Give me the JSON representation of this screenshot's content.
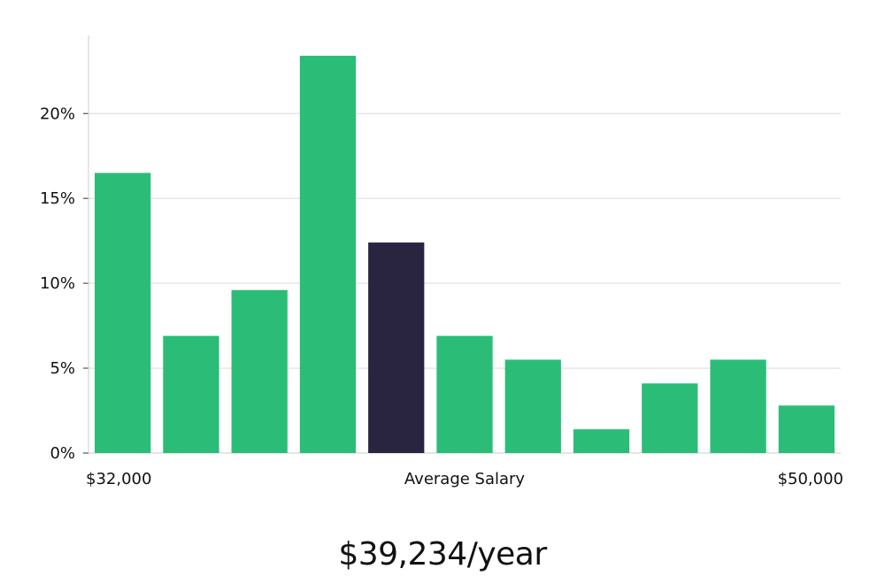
{
  "chart_data": {
    "type": "bar",
    "title": "",
    "xlabel": "Average Salary",
    "ylabel": "",
    "x_range_labels": {
      "min": "$32,000",
      "max": "$50,000"
    },
    "bin_count": 11,
    "ylim": [
      0,
      24.6
    ],
    "y_ticks": [
      0,
      5,
      10,
      15,
      20
    ],
    "y_tick_labels": [
      "0%",
      "5%",
      "10%",
      "15%",
      "20%"
    ],
    "values": [
      16.5,
      6.9,
      9.6,
      23.4,
      12.4,
      6.9,
      5.5,
      1.4,
      4.1,
      5.5,
      2.8
    ],
    "highlight_index": 4,
    "grid": true,
    "legend": "none"
  },
  "summary": {
    "salary": "$39,234/year"
  },
  "colors": {
    "bar": "#2bbd77",
    "highlight": "#29243f",
    "grid": "#d9d9d9",
    "axis": "#cccccc",
    "text": "#111111"
  }
}
